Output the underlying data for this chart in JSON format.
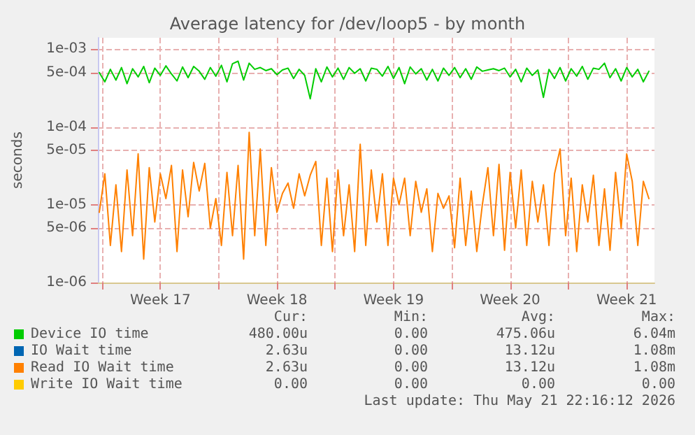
{
  "chart_data": {
    "type": "line",
    "title": "Average latency for /dev/loop5 - by month",
    "ylabel": "seconds",
    "log": "y",
    "grid": true,
    "legend": "bottom left",
    "marker": "none",
    "line_style": "solid",
    "xlim": [
      "2026-04-19T18:00",
      "2026-05-23T04:00"
    ],
    "xticks": [
      {
        "value": "2026-04-20",
        "label": null
      },
      {
        "value": "2026-04-23T12:00",
        "label": "Week 17"
      },
      {
        "value": "2026-04-27",
        "label": null
      },
      {
        "value": "2026-04-30T12:00",
        "label": "Week 18"
      },
      {
        "value": "2026-05-04",
        "label": null
      },
      {
        "value": "2026-05-07T12:00",
        "label": "Week 19"
      },
      {
        "value": "2026-05-11",
        "label": null
      },
      {
        "value": "2026-05-14T12:00",
        "label": "Week 20"
      },
      {
        "value": "2026-05-18",
        "label": null
      },
      {
        "value": "2026-05-21T12:00",
        "label": "Week 21"
      }
    ],
    "ylim": [
      1e-06,
      0.0014
    ],
    "yticks": [
      {
        "value": 1e-06,
        "label": "1e-06"
      },
      {
        "value": 5e-06,
        "label": "5e-06"
      },
      {
        "value": 1e-05,
        "label": "1e-05"
      },
      {
        "value": 5e-05,
        "label": "5e-05"
      },
      {
        "value": 0.0001,
        "label": "1e-04"
      },
      {
        "value": 0.0005,
        "label": "5e-04"
      },
      {
        "value": 0.001,
        "label": "1e-03"
      }
    ],
    "x": [
      "2026-04-19T20:00",
      "2026-04-20T04:00",
      "2026-04-20T12:00",
      "2026-04-20T20:00",
      "2026-04-21T04:00",
      "2026-04-21T12:00",
      "2026-04-21T20:00",
      "2026-04-22T04:00",
      "2026-04-22T12:00",
      "2026-04-22T20:00",
      "2026-04-23T04:00",
      "2026-04-23T12:00",
      "2026-04-23T20:00",
      "2026-04-24T04:00",
      "2026-04-24T12:00",
      "2026-04-24T20:00",
      "2026-04-25T04:00",
      "2026-04-25T12:00",
      "2026-04-25T20:00",
      "2026-04-26T04:00",
      "2026-04-26T12:00",
      "2026-04-26T20:00",
      "2026-04-27T04:00",
      "2026-04-27T12:00",
      "2026-04-27T20:00",
      "2026-04-28T04:00",
      "2026-04-28T12:00",
      "2026-04-28T20:00",
      "2026-04-29T04:00",
      "2026-04-29T12:00",
      "2026-04-29T20:00",
      "2026-04-30T04:00",
      "2026-04-30T12:00",
      "2026-04-30T20:00",
      "2026-05-01T04:00",
      "2026-05-01T12:00",
      "2026-05-01T20:00",
      "2026-05-02T04:00",
      "2026-05-02T12:00",
      "2026-05-02T20:00",
      "2026-05-03T04:00",
      "2026-05-03T12:00",
      "2026-05-03T20:00",
      "2026-05-04T04:00",
      "2026-05-04T12:00",
      "2026-05-04T20:00",
      "2026-05-05T04:00",
      "2026-05-05T12:00",
      "2026-05-05T20:00",
      "2026-05-06T04:00",
      "2026-05-06T12:00",
      "2026-05-06T20:00",
      "2026-05-07T04:00",
      "2026-05-07T12:00",
      "2026-05-07T20:00",
      "2026-05-08T04:00",
      "2026-05-08T12:00",
      "2026-05-08T20:00",
      "2026-05-09T04:00",
      "2026-05-09T12:00",
      "2026-05-09T20:00",
      "2026-05-10T04:00",
      "2026-05-10T12:00",
      "2026-05-10T20:00",
      "2026-05-11T04:00",
      "2026-05-11T12:00",
      "2026-05-11T20:00",
      "2026-05-12T04:00",
      "2026-05-12T12:00",
      "2026-05-12T20:00",
      "2026-05-13T04:00",
      "2026-05-13T12:00",
      "2026-05-13T20:00",
      "2026-05-14T04:00",
      "2026-05-14T12:00",
      "2026-05-14T20:00",
      "2026-05-15T04:00",
      "2026-05-15T12:00",
      "2026-05-15T20:00",
      "2026-05-16T04:00",
      "2026-05-16T12:00",
      "2026-05-16T20:00",
      "2026-05-17T04:00",
      "2026-05-17T12:00",
      "2026-05-17T20:00",
      "2026-05-18T04:00",
      "2026-05-18T12:00",
      "2026-05-18T20:00",
      "2026-05-19T04:00",
      "2026-05-19T12:00",
      "2026-05-19T20:00",
      "2026-05-20T04:00",
      "2026-05-20T12:00",
      "2026-05-20T20:00",
      "2026-05-21T04:00",
      "2026-05-21T12:00",
      "2026-05-21T20:00",
      "2026-05-22T04:00",
      "2026-05-22T12:00",
      "2026-05-22T20:00"
    ],
    "series": [
      {
        "name": "Device IO time",
        "color": "#00cc00",
        "values": [
          0.0005,
          0.00038,
          0.00055,
          0.0004,
          0.00058,
          0.00036,
          0.00056,
          0.00044,
          0.0006,
          0.00037,
          0.00057,
          0.00046,
          0.00061,
          0.00048,
          0.00039,
          0.00059,
          0.00043,
          0.0006,
          0.00052,
          0.00041,
          0.00058,
          0.00045,
          0.00062,
          0.00038,
          0.00065,
          0.0007,
          0.0004,
          0.00066,
          0.00055,
          0.00058,
          0.00053,
          0.00056,
          0.00047,
          0.00054,
          0.00057,
          0.00042,
          0.00055,
          0.00046,
          0.00023,
          0.00056,
          0.00038,
          0.00059,
          0.00044,
          0.00057,
          0.00041,
          0.00058,
          0.00049,
          0.00056,
          0.00039,
          0.00057,
          0.00055,
          0.00045,
          0.0006,
          0.00042,
          0.00058,
          0.00036,
          0.00059,
          0.00048,
          0.00056,
          0.0004,
          0.00055,
          0.00039,
          0.00057,
          0.00046,
          0.00058,
          0.00043,
          0.00056,
          0.00041,
          0.00059,
          0.00052,
          0.00054,
          0.00056,
          0.00053,
          0.00057,
          0.00044,
          0.00055,
          0.00038,
          0.00057,
          0.00046,
          0.00054,
          0.00024,
          0.00055,
          0.00042,
          0.00058,
          0.00039,
          0.00056,
          0.00045,
          0.0006,
          0.00041,
          0.00057,
          0.00055,
          0.00066,
          0.00043,
          0.00056,
          0.00039,
          0.00058,
          0.00044,
          0.00055,
          0.00038,
          0.00052
        ]
      },
      {
        "name": "IO Wait time",
        "color": "#0066b3",
        "values": [
          null,
          null,
          null,
          null,
          null,
          null,
          null,
          null,
          null,
          null,
          null,
          null,
          null,
          null,
          null,
          null,
          null,
          null,
          null,
          null,
          null,
          null,
          null,
          null,
          null,
          null,
          null,
          null,
          null,
          null,
          null,
          null,
          null,
          null,
          null,
          null,
          null,
          null,
          null,
          null,
          null,
          null,
          null,
          null,
          null,
          null,
          null,
          null,
          null,
          null,
          null,
          null,
          null,
          null,
          null,
          null,
          null,
          null,
          null,
          null,
          null,
          null,
          null,
          null,
          null,
          null,
          null,
          null,
          null,
          null,
          null,
          null,
          null,
          null,
          null,
          null,
          null,
          null,
          null,
          null,
          null,
          null,
          null,
          null,
          null,
          null,
          null,
          null,
          null,
          null,
          null,
          null,
          null,
          null,
          null,
          null,
          null,
          null,
          null,
          null
        ]
      },
      {
        "name": "Read IO Wait time",
        "color": "#ff8000",
        "values": [
          8e-06,
          2.5e-05,
          3e-06,
          1.8e-05,
          2.5e-06,
          2.8e-05,
          4e-06,
          4.5e-05,
          2e-06,
          3e-05,
          6e-06,
          2.5e-05,
          1.2e-05,
          3.2e-05,
          2.5e-06,
          2.8e-05,
          7e-06,
          3.5e-05,
          1.5e-05,
          3.4e-05,
          5e-06,
          1.2e-05,
          3e-06,
          2.6e-05,
          4e-06,
          3.2e-05,
          2e-06,
          8.5e-05,
          4e-06,
          5.2e-05,
          3e-06,
          3e-05,
          8e-06,
          1.4e-05,
          1.9e-05,
          9e-06,
          2.5e-05,
          1.3e-05,
          2.4e-05,
          3.6e-05,
          3e-06,
          2.2e-05,
          2.5e-06,
          2.8e-05,
          4e-06,
          1.8e-05,
          2.5e-06,
          6e-05,
          3e-06,
          2.8e-05,
          6e-06,
          2.5e-05,
          3e-06,
          2.2e-05,
          1e-05,
          2.2e-05,
          4e-06,
          2e-05,
          8e-06,
          1.6e-05,
          2.5e-06,
          1.4e-05,
          9e-06,
          1.3e-05,
          2.8e-06,
          2.2e-05,
          3e-06,
          1.5e-05,
          2.5e-06,
          1e-05,
          3e-05,
          4e-06,
          3.3e-05,
          2.6e-06,
          2.6e-05,
          5e-06,
          2.8e-05,
          3e-06,
          2e-05,
          6e-06,
          1.8e-05,
          3e-06,
          2.5e-05,
          5.2e-05,
          4e-06,
          2.2e-05,
          2.5e-06,
          1.8e-05,
          6e-06,
          2.4e-05,
          3e-06,
          1.6e-05,
          2.6e-06,
          2.6e-05,
          5e-06,
          4.5e-05,
          2e-05,
          3e-06,
          2e-05,
          1.2e-05
        ]
      },
      {
        "name": "Write IO Wait time",
        "color": "#ffcc00",
        "values": [
          null,
          null,
          null,
          null,
          null,
          null,
          null,
          null,
          null,
          null,
          null,
          null,
          null,
          null,
          null,
          null,
          null,
          null,
          null,
          null,
          null,
          null,
          null,
          null,
          null,
          null,
          null,
          null,
          null,
          null,
          null,
          null,
          null,
          null,
          null,
          null,
          null,
          null,
          null,
          null,
          null,
          null,
          null,
          null,
          null,
          null,
          null,
          null,
          null,
          null,
          null,
          null,
          null,
          null,
          null,
          null,
          null,
          null,
          null,
          null,
          null,
          null,
          null,
          null,
          null,
          null,
          null,
          null,
          null,
          null,
          null,
          null,
          null,
          null,
          null,
          null,
          null,
          null,
          null,
          null,
          null,
          null,
          null,
          null,
          null,
          null,
          null,
          null,
          null,
          null,
          null,
          null,
          null,
          null,
          null,
          null,
          null,
          null,
          null,
          null
        ]
      }
    ],
    "annotations": [
      "Cur:",
      "Min:",
      "Avg:",
      "Max:",
      "480.00u",
      "0.00",
      "475.06u",
      "6.04m",
      "2.63u",
      "0.00",
      "13.12u",
      "1.08m",
      "2.63u",
      "0.00",
      "13.12u",
      "1.08m",
      "0.00",
      "0.00",
      "0.00",
      "0.00",
      "Last update: Thu May 21 22:16:12 2026"
    ]
  }
}
